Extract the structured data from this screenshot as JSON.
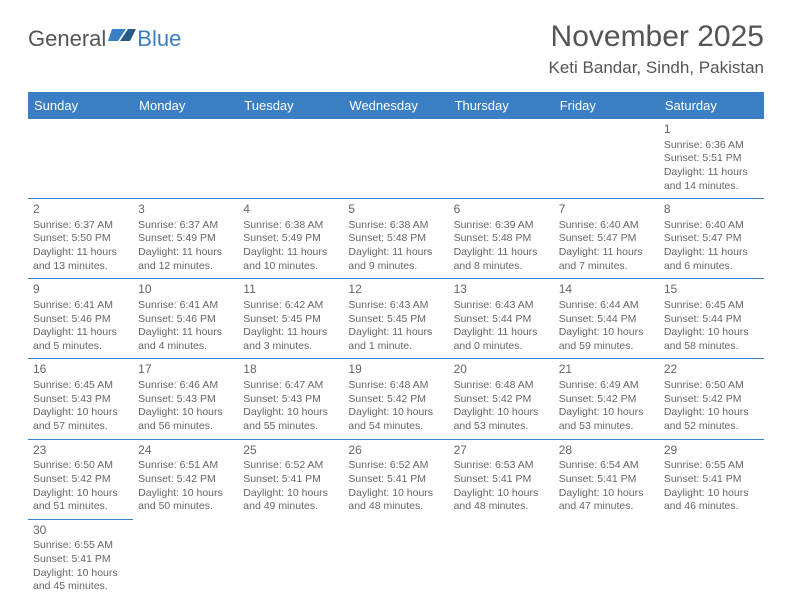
{
  "logo": {
    "text1": "General",
    "text2": "Blue"
  },
  "title": "November 2025",
  "location": "Keti Bandar, Sindh, Pakistan",
  "header_bg": "#3a7fc4",
  "header_text_color": "#ffffff",
  "border_color": "#3a7fc4",
  "text_color": "#666666",
  "days_of_week": [
    "Sunday",
    "Monday",
    "Tuesday",
    "Wednesday",
    "Thursday",
    "Friday",
    "Saturday"
  ],
  "weeks": [
    [
      null,
      null,
      null,
      null,
      null,
      null,
      {
        "n": "1",
        "sr": "Sunrise: 6:36 AM",
        "ss": "Sunset: 5:51 PM",
        "d1": "Daylight: 11 hours",
        "d2": "and 14 minutes."
      }
    ],
    [
      {
        "n": "2",
        "sr": "Sunrise: 6:37 AM",
        "ss": "Sunset: 5:50 PM",
        "d1": "Daylight: 11 hours",
        "d2": "and 13 minutes."
      },
      {
        "n": "3",
        "sr": "Sunrise: 6:37 AM",
        "ss": "Sunset: 5:49 PM",
        "d1": "Daylight: 11 hours",
        "d2": "and 12 minutes."
      },
      {
        "n": "4",
        "sr": "Sunrise: 6:38 AM",
        "ss": "Sunset: 5:49 PM",
        "d1": "Daylight: 11 hours",
        "d2": "and 10 minutes."
      },
      {
        "n": "5",
        "sr": "Sunrise: 6:38 AM",
        "ss": "Sunset: 5:48 PM",
        "d1": "Daylight: 11 hours",
        "d2": "and 9 minutes."
      },
      {
        "n": "6",
        "sr": "Sunrise: 6:39 AM",
        "ss": "Sunset: 5:48 PM",
        "d1": "Daylight: 11 hours",
        "d2": "and 8 minutes."
      },
      {
        "n": "7",
        "sr": "Sunrise: 6:40 AM",
        "ss": "Sunset: 5:47 PM",
        "d1": "Daylight: 11 hours",
        "d2": "and 7 minutes."
      },
      {
        "n": "8",
        "sr": "Sunrise: 6:40 AM",
        "ss": "Sunset: 5:47 PM",
        "d1": "Daylight: 11 hours",
        "d2": "and 6 minutes."
      }
    ],
    [
      {
        "n": "9",
        "sr": "Sunrise: 6:41 AM",
        "ss": "Sunset: 5:46 PM",
        "d1": "Daylight: 11 hours",
        "d2": "and 5 minutes."
      },
      {
        "n": "10",
        "sr": "Sunrise: 6:41 AM",
        "ss": "Sunset: 5:46 PM",
        "d1": "Daylight: 11 hours",
        "d2": "and 4 minutes."
      },
      {
        "n": "11",
        "sr": "Sunrise: 6:42 AM",
        "ss": "Sunset: 5:45 PM",
        "d1": "Daylight: 11 hours",
        "d2": "and 3 minutes."
      },
      {
        "n": "12",
        "sr": "Sunrise: 6:43 AM",
        "ss": "Sunset: 5:45 PM",
        "d1": "Daylight: 11 hours",
        "d2": "and 1 minute."
      },
      {
        "n": "13",
        "sr": "Sunrise: 6:43 AM",
        "ss": "Sunset: 5:44 PM",
        "d1": "Daylight: 11 hours",
        "d2": "and 0 minutes."
      },
      {
        "n": "14",
        "sr": "Sunrise: 6:44 AM",
        "ss": "Sunset: 5:44 PM",
        "d1": "Daylight: 10 hours",
        "d2": "and 59 minutes."
      },
      {
        "n": "15",
        "sr": "Sunrise: 6:45 AM",
        "ss": "Sunset: 5:44 PM",
        "d1": "Daylight: 10 hours",
        "d2": "and 58 minutes."
      }
    ],
    [
      {
        "n": "16",
        "sr": "Sunrise: 6:45 AM",
        "ss": "Sunset: 5:43 PM",
        "d1": "Daylight: 10 hours",
        "d2": "and 57 minutes."
      },
      {
        "n": "17",
        "sr": "Sunrise: 6:46 AM",
        "ss": "Sunset: 5:43 PM",
        "d1": "Daylight: 10 hours",
        "d2": "and 56 minutes."
      },
      {
        "n": "18",
        "sr": "Sunrise: 6:47 AM",
        "ss": "Sunset: 5:43 PM",
        "d1": "Daylight: 10 hours",
        "d2": "and 55 minutes."
      },
      {
        "n": "19",
        "sr": "Sunrise: 6:48 AM",
        "ss": "Sunset: 5:42 PM",
        "d1": "Daylight: 10 hours",
        "d2": "and 54 minutes."
      },
      {
        "n": "20",
        "sr": "Sunrise: 6:48 AM",
        "ss": "Sunset: 5:42 PM",
        "d1": "Daylight: 10 hours",
        "d2": "and 53 minutes."
      },
      {
        "n": "21",
        "sr": "Sunrise: 6:49 AM",
        "ss": "Sunset: 5:42 PM",
        "d1": "Daylight: 10 hours",
        "d2": "and 53 minutes."
      },
      {
        "n": "22",
        "sr": "Sunrise: 6:50 AM",
        "ss": "Sunset: 5:42 PM",
        "d1": "Daylight: 10 hours",
        "d2": "and 52 minutes."
      }
    ],
    [
      {
        "n": "23",
        "sr": "Sunrise: 6:50 AM",
        "ss": "Sunset: 5:42 PM",
        "d1": "Daylight: 10 hours",
        "d2": "and 51 minutes."
      },
      {
        "n": "24",
        "sr": "Sunrise: 6:51 AM",
        "ss": "Sunset: 5:42 PM",
        "d1": "Daylight: 10 hours",
        "d2": "and 50 minutes."
      },
      {
        "n": "25",
        "sr": "Sunrise: 6:52 AM",
        "ss": "Sunset: 5:41 PM",
        "d1": "Daylight: 10 hours",
        "d2": "and 49 minutes."
      },
      {
        "n": "26",
        "sr": "Sunrise: 6:52 AM",
        "ss": "Sunset: 5:41 PM",
        "d1": "Daylight: 10 hours",
        "d2": "and 48 minutes."
      },
      {
        "n": "27",
        "sr": "Sunrise: 6:53 AM",
        "ss": "Sunset: 5:41 PM",
        "d1": "Daylight: 10 hours",
        "d2": "and 48 minutes."
      },
      {
        "n": "28",
        "sr": "Sunrise: 6:54 AM",
        "ss": "Sunset: 5:41 PM",
        "d1": "Daylight: 10 hours",
        "d2": "and 47 minutes."
      },
      {
        "n": "29",
        "sr": "Sunrise: 6:55 AM",
        "ss": "Sunset: 5:41 PM",
        "d1": "Daylight: 10 hours",
        "d2": "and 46 minutes."
      }
    ],
    [
      {
        "n": "30",
        "sr": "Sunrise: 6:55 AM",
        "ss": "Sunset: 5:41 PM",
        "d1": "Daylight: 10 hours",
        "d2": "and 45 minutes."
      },
      null,
      null,
      null,
      null,
      null,
      null
    ]
  ]
}
